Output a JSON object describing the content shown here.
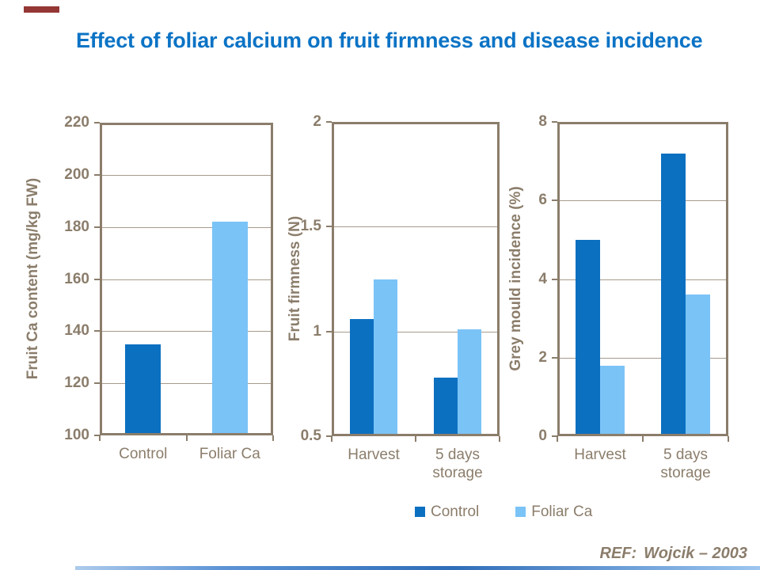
{
  "title": "Effect of foliar calcium on fruit firmness and disease incidence",
  "reference": {
    "label": "REF:",
    "value": "Wojcik – 2003"
  },
  "legend": {
    "items": [
      {
        "label": "Control"
      },
      {
        "label": "Foliar Ca"
      }
    ]
  },
  "colors": {
    "title": "#0B73C5",
    "axis": "#8B7D6B",
    "grid": "#A79B8C",
    "accent_red": "#953735",
    "footer_gradient": [
      "#AECBEC",
      "#5B93D5",
      "#2F6DB8",
      "#9DC6F0"
    ],
    "series": {
      "Control": "#0C70C0",
      "Foliar Ca": "#7AC3F7"
    }
  },
  "chart_data": [
    {
      "type": "bar",
      "title": "",
      "ylabel": "Fruit Ca content (mg/kg FW)",
      "xlabel": "",
      "categories": [
        "Control",
        "Foliar Ca"
      ],
      "values": [
        135,
        182
      ],
      "value_series": [
        "Control",
        "Foliar Ca"
      ],
      "ylim": [
        100,
        220
      ],
      "yticks": [
        100,
        120,
        140,
        160,
        180,
        200,
        220
      ],
      "grid": true,
      "legend_position": "none"
    },
    {
      "type": "bar",
      "title": "",
      "ylabel": "Fruit firmness (N)",
      "xlabel": "",
      "categories": [
        "Harvest",
        "5 days storage"
      ],
      "series": [
        {
          "name": "Control",
          "values": [
            1.06,
            0.78
          ]
        },
        {
          "name": "Foliar Ca",
          "values": [
            1.25,
            1.01
          ]
        }
      ],
      "ylim": [
        0.5,
        2
      ],
      "yticks": [
        0.5,
        1,
        1.5,
        2
      ],
      "grid": true,
      "legend_position": "bottom"
    },
    {
      "type": "bar",
      "title": "",
      "ylabel": "Grey mould incidence (%)",
      "xlabel": "",
      "categories": [
        "Harvest",
        "5 days storage"
      ],
      "series": [
        {
          "name": "Control",
          "values": [
            5.0,
            7.2
          ]
        },
        {
          "name": "Foliar Ca",
          "values": [
            1.8,
            3.6
          ]
        }
      ],
      "ylim": [
        0,
        8
      ],
      "yticks": [
        0,
        2,
        4,
        6,
        8
      ],
      "grid": true,
      "legend_position": "bottom"
    }
  ]
}
